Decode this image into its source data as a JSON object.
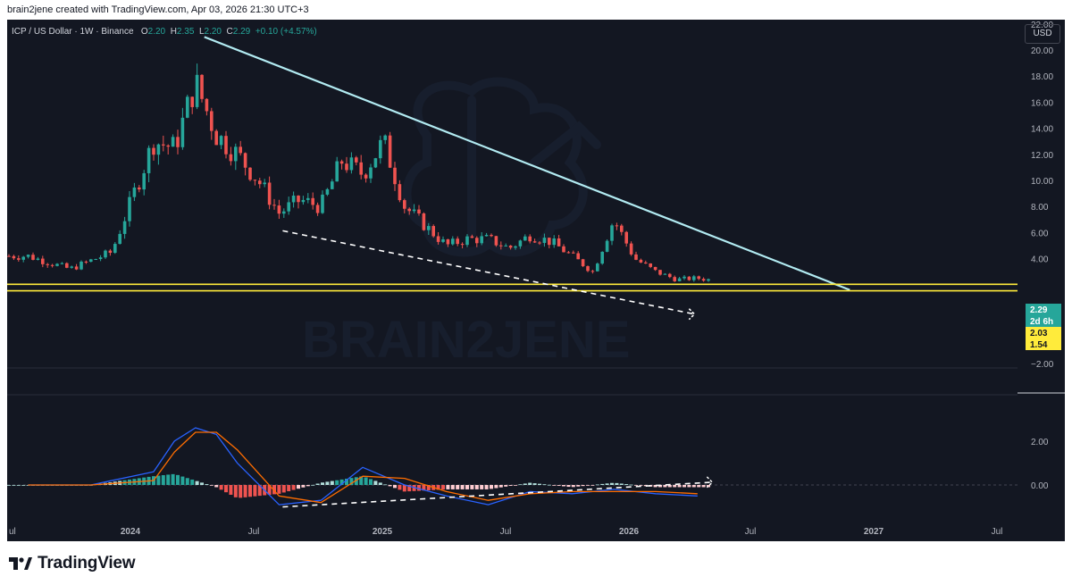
{
  "header": {
    "attribution": "brain2jene created with TradingView.com, Apr 03, 2026 21:30 UTC+3"
  },
  "legend": {
    "symbol": "ICP / US Dollar · 1W · Binance",
    "o_label": "O",
    "o_value": "2.20",
    "h_label": "H",
    "h_value": "2.35",
    "l_label": "L",
    "l_value": "2.20",
    "c_label": "C",
    "c_value": "2.29",
    "change": "+0.10 (+4.57%)"
  },
  "currency_button": "USD",
  "watermark": "BRAIN2JENE",
  "price_axis": {
    "ticks": [
      "22.00",
      "20.00",
      "18.00",
      "16.00",
      "14.00",
      "12.00",
      "10.00",
      "8.00",
      "6.00",
      "4.00",
      "−2.00"
    ],
    "last_price": "2.29",
    "countdown": "2d 6h",
    "level_high": "2.03",
    "level_low": "1.54"
  },
  "indicator_axis": {
    "ticks": [
      "2.00",
      "0.00"
    ]
  },
  "time_axis": {
    "ticks": [
      "ul",
      "2024",
      "Jul",
      "2025",
      "Jul",
      "2026",
      "Jul",
      "2027",
      "Jul"
    ]
  },
  "footer": {
    "brand": "TradingView"
  },
  "colors": {
    "background": "#131722",
    "up": "#26a69a",
    "down": "#ef5350",
    "trendline": "#b2ebf2",
    "level": "#ffeb3b",
    "macd": "#2962ff",
    "signal": "#ff6d00"
  },
  "chart_data": [
    {
      "type": "candlestick",
      "symbol": "ICP / US Dollar",
      "interval": "1W",
      "exchange": "Binance",
      "ylim": [
        0,
        22
      ],
      "x": [
        "2023-07",
        "2023-09",
        "2023-11",
        "2024-01",
        "2024-02",
        "2024-03",
        "2024-04",
        "2024-05",
        "2024-06",
        "2024-07",
        "2024-08",
        "2024-09",
        "2024-10",
        "2024-11",
        "2024-12",
        "2025-01",
        "2025-02",
        "2025-03",
        "2025-04",
        "2025-05",
        "2025-06",
        "2025-07",
        "2025-08",
        "2025-09",
        "2025-10",
        "2025-11",
        "2025-12",
        "2026-01",
        "2026-02",
        "2026-03",
        "2026-04"
      ],
      "close": [
        4.2,
        3.2,
        4.5,
        13.0,
        12.5,
        17.5,
        13.5,
        12.0,
        10.0,
        7.5,
        8.5,
        8.0,
        11.5,
        10.5,
        13.0,
        8.0,
        6.5,
        5.0,
        5.5,
        5.5,
        4.8,
        5.8,
        5.3,
        4.2,
        3.0,
        7.0,
        4.0,
        3.0,
        2.4,
        2.5,
        2.29
      ],
      "annotations": {
        "descending_trendline": {
          "from": [
            "2024-03",
            21.0
          ],
          "to": [
            "2026-09",
            1.6
          ]
        },
        "support_levels": [
          2.03,
          1.54
        ],
        "dashed_projection": {
          "from": [
            "2024-07",
            6.0
          ],
          "to": [
            "2026-02",
            1.8
          ]
        }
      }
    },
    {
      "type": "line",
      "name": "MACD",
      "ylim": [
        -1.5,
        3.0
      ],
      "x": [
        "2023-07",
        "2023-10",
        "2024-01",
        "2024-02",
        "2024-03",
        "2024-04",
        "2024-05",
        "2024-07",
        "2024-09",
        "2024-11",
        "2025-01",
        "2025-03",
        "2025-05",
        "2025-07",
        "2025-09",
        "2025-11",
        "2026-01",
        "2026-03"
      ],
      "series": [
        {
          "values": [
            0.0,
            0.0,
            0.6,
            2.0,
            2.6,
            2.3,
            1.0,
            -0.9,
            -0.7,
            0.8,
            0.0,
            -0.5,
            -0.9,
            -0.3,
            -0.4,
            -0.2,
            -0.4,
            -0.5
          ]
        },
        {
          "values": [
            0.0,
            0.0,
            0.2,
            1.5,
            2.4,
            2.4,
            1.6,
            -0.5,
            -0.8,
            0.4,
            0.3,
            -0.3,
            -0.7,
            -0.4,
            -0.3,
            -0.3,
            -0.3,
            -0.4
          ]
        }
      ],
      "histogram": [
        0.0,
        0.0,
        0.4,
        0.5,
        0.2,
        -0.1,
        -0.6,
        -0.4,
        0.1,
        0.4,
        -0.3,
        -0.2,
        -0.2,
        0.1,
        -0.1,
        0.1,
        -0.1,
        -0.1
      ],
      "annotations": {
        "dashed_divergence": {
          "from": [
            "2024-07",
            -1.0
          ],
          "to": [
            "2026-02",
            -0.2
          ]
        }
      }
    }
  ]
}
